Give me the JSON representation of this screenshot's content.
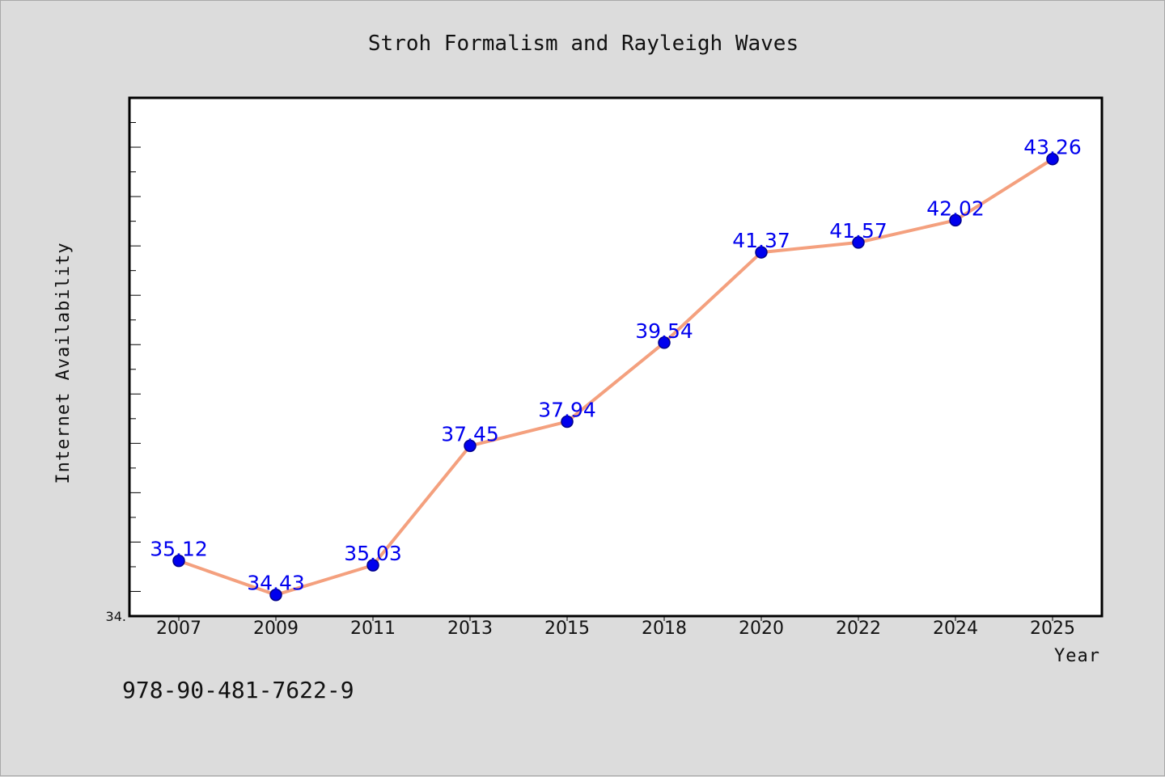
{
  "chart_data": {
    "type": "line",
    "title": "Stroh Formalism and Rayleigh Waves",
    "xlabel": "Year",
    "ylabel": "Internet Availability",
    "categories": [
      "2007",
      "2009",
      "2011",
      "2013",
      "2015",
      "2018",
      "2020",
      "2022",
      "2024",
      "2025"
    ],
    "values": [
      35.12,
      34.43,
      35.03,
      37.45,
      37.94,
      39.54,
      41.37,
      41.57,
      42.02,
      43.26
    ],
    "data_labels": [
      "35.12",
      "34.43",
      "35.03",
      "37.45",
      "37.94",
      "39.54",
      "41.37",
      "41.57",
      "42.02",
      "43.26"
    ],
    "ylim": [
      34.0,
      44.5
    ],
    "y_tick_labels": [
      "34."
    ],
    "grid": false,
    "line_color": "#f4a07e",
    "marker_color": "#0000ee",
    "label_color": "#0000ee"
  },
  "footer": {
    "isbn": "978-90-481-7622-9"
  }
}
